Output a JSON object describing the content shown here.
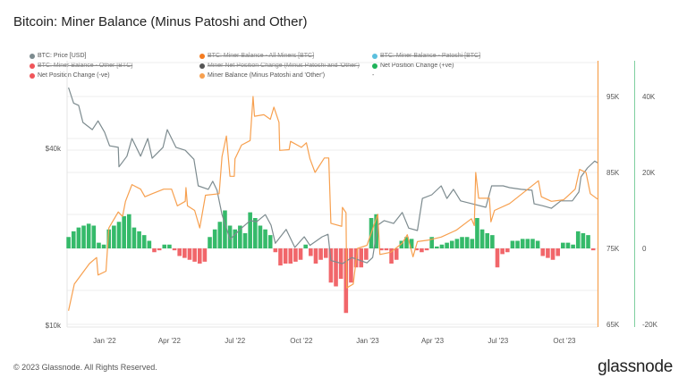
{
  "title": "Bitcoin: Miner Balance (Minus Patoshi and Other)",
  "legend": [
    {
      "label": "BTC: Price [USD]",
      "color": "#7d8b8f",
      "hidden": false
    },
    {
      "label": "BTC: Miner Balance - All Miners [BTC]",
      "color": "#f57c20",
      "hidden": true
    },
    {
      "label": "BTC: Miner Balance - Patoshi [BTC]",
      "color": "#5bc0de",
      "hidden": true
    },
    {
      "label": "BTC: Miner Balance - Other [BTC]",
      "color": "#f0555a",
      "hidden": true
    },
    {
      "label": "Miner Net Position Change (Minus Patoshi and 'Other')",
      "color": "#555555",
      "hidden": true
    },
    {
      "label": "Net Position Change (+ve)",
      "color": "#1fb35a",
      "hidden": false
    },
    {
      "label": "Net Position Change (-ve)",
      "color": "#f0555a",
      "hidden": false
    },
    {
      "label": "Miner Balance (Minus Patoshi and 'Other')",
      "color": "#f7a04f",
      "hidden": false
    },
    {
      "label": "-",
      "color": "",
      "hidden": false
    }
  ],
  "footer": "© 2023 Glassnode. All Rights Reserved.",
  "logo": "glassnode",
  "chart_data": {
    "type": "line",
    "title": "Bitcoin: Miner Balance (Minus Patoshi and Other)",
    "x_range": [
      "2021-11-10",
      "2023-11-16"
    ],
    "x_ticks": [
      {
        "date": "2022-01-01",
        "label": "Jan '22"
      },
      {
        "date": "2022-04-01",
        "label": "Apr '22"
      },
      {
        "date": "2022-07-01",
        "label": "Jul '22"
      },
      {
        "date": "2022-10-01",
        "label": "Oct '22"
      },
      {
        "date": "2023-01-01",
        "label": "Jan '23"
      },
      {
        "date": "2023-04-01",
        "label": "Apr '23"
      },
      {
        "date": "2023-07-01",
        "label": "Jul '23"
      },
      {
        "date": "2023-10-01",
        "label": "Oct '23"
      }
    ],
    "axes": {
      "price": {
        "scale": "log",
        "ticks": [
          {
            "value": 40000,
            "label": "$40k"
          },
          {
            "value": 10000,
            "label": "$10k"
          }
        ]
      },
      "balance": {
        "scale": "linear",
        "range": [
          65000,
          95000
        ],
        "ticks": [
          {
            "value": 95000,
            "label": "95K"
          },
          {
            "value": 85000,
            "label": "85K"
          },
          {
            "value": 75000,
            "label": "75K"
          },
          {
            "value": 65000,
            "label": "65K"
          }
        ],
        "color": "#f7a04f"
      },
      "net_change": {
        "scale": "linear",
        "range": [
          -20000,
          40000
        ],
        "ticks": [
          {
            "value": 40000,
            "label": "40K"
          },
          {
            "value": 20000,
            "label": "20K"
          },
          {
            "value": 0,
            "label": "0"
          },
          {
            "value": -20000,
            "label": "-20K"
          }
        ],
        "color": "#7fcf9f"
      }
    },
    "grid": true,
    "legend_position": "top",
    "series": [
      {
        "name": "BTC: Price [USD]",
        "axis": "price",
        "type": "line",
        "color": "#7d8b8f",
        "points": [
          [
            "2021-11-12",
            64400
          ],
          [
            "2021-11-19",
            57000
          ],
          [
            "2021-11-26",
            56000
          ],
          [
            "2021-12-02",
            49000
          ],
          [
            "2021-12-15",
            46300
          ],
          [
            "2021-12-23",
            49600
          ],
          [
            "2022-01-01",
            45400
          ],
          [
            "2022-01-08",
            40800
          ],
          [
            "2022-01-20",
            40300
          ],
          [
            "2022-01-21",
            34600
          ],
          [
            "2022-02-01",
            37600
          ],
          [
            "2022-02-08",
            43200
          ],
          [
            "2022-02-20",
            37600
          ],
          [
            "2022-03-02",
            43200
          ],
          [
            "2022-03-08",
            37000
          ],
          [
            "2022-03-23",
            40300
          ],
          [
            "2022-03-29",
            46300
          ],
          [
            "2022-04-10",
            40300
          ],
          [
            "2022-04-23",
            39400
          ],
          [
            "2022-05-05",
            36700
          ],
          [
            "2022-05-11",
            29800
          ],
          [
            "2022-05-25",
            29000
          ],
          [
            "2022-05-31",
            30900
          ],
          [
            "2022-06-06",
            28800
          ],
          [
            "2022-06-13",
            23800
          ],
          [
            "2022-06-24",
            19600
          ],
          [
            "2022-07-10",
            21400
          ],
          [
            "2022-07-22",
            22700
          ],
          [
            "2022-07-31",
            22500
          ],
          [
            "2022-08-12",
            23800
          ],
          [
            "2022-08-20",
            21900
          ],
          [
            "2022-08-26",
            19000
          ],
          [
            "2022-09-10",
            21200
          ],
          [
            "2022-09-22",
            18400
          ],
          [
            "2022-10-05",
            20000
          ],
          [
            "2022-10-13",
            18700
          ],
          [
            "2022-10-30",
            20000
          ],
          [
            "2022-11-07",
            20400
          ],
          [
            "2022-11-11",
            16600
          ],
          [
            "2022-11-27",
            16200
          ],
          [
            "2022-12-10",
            17000
          ],
          [
            "2022-12-31",
            16300
          ],
          [
            "2023-01-08",
            17000
          ],
          [
            "2023-01-15",
            21900
          ],
          [
            "2023-01-24",
            22700
          ],
          [
            "2023-02-06",
            22200
          ],
          [
            "2023-02-18",
            24200
          ],
          [
            "2023-02-27",
            21400
          ],
          [
            "2023-03-11",
            21000
          ],
          [
            "2023-03-18",
            27000
          ],
          [
            "2023-03-31",
            27800
          ],
          [
            "2023-04-13",
            29800
          ],
          [
            "2023-04-21",
            27000
          ],
          [
            "2023-04-30",
            29000
          ],
          [
            "2023-05-10",
            26500
          ],
          [
            "2023-05-26",
            25900
          ],
          [
            "2023-06-14",
            25200
          ],
          [
            "2023-06-22",
            29800
          ],
          [
            "2023-07-08",
            29800
          ],
          [
            "2023-07-17",
            29400
          ],
          [
            "2023-08-02",
            29000
          ],
          [
            "2023-08-17",
            28800
          ],
          [
            "2023-08-20",
            25900
          ],
          [
            "2023-09-01",
            25500
          ],
          [
            "2023-09-13",
            25000
          ],
          [
            "2023-09-26",
            26500
          ],
          [
            "2023-10-12",
            26500
          ],
          [
            "2023-10-21",
            28400
          ],
          [
            "2023-10-24",
            32000
          ],
          [
            "2023-11-02",
            34300
          ],
          [
            "2023-11-12",
            36200
          ],
          [
            "2023-11-16",
            35700
          ]
        ]
      },
      {
        "name": "Miner Balance (Minus Patoshi and 'Other')",
        "axis": "balance",
        "type": "line",
        "color": "#f7a04f",
        "points": [
          [
            "2021-11-12",
            66800
          ],
          [
            "2021-11-20",
            70300
          ],
          [
            "2021-12-11",
            73000
          ],
          [
            "2021-12-21",
            73800
          ],
          [
            "2021-12-23",
            71500
          ],
          [
            "2022-01-03",
            72000
          ],
          [
            "2022-01-07",
            77700
          ],
          [
            "2022-01-20",
            79800
          ],
          [
            "2022-01-26",
            79200
          ],
          [
            "2022-01-30",
            81200
          ],
          [
            "2022-02-08",
            83400
          ],
          [
            "2022-02-20",
            82800
          ],
          [
            "2022-02-26",
            81800
          ],
          [
            "2022-03-08",
            82200
          ],
          [
            "2022-03-24",
            82800
          ],
          [
            "2022-04-04",
            82800
          ],
          [
            "2022-04-12",
            80600
          ],
          [
            "2022-04-23",
            81200
          ],
          [
            "2022-04-24",
            83000
          ],
          [
            "2022-04-26",
            80600
          ],
          [
            "2022-05-06",
            80000
          ],
          [
            "2022-05-13",
            77700
          ],
          [
            "2022-05-21",
            82000
          ],
          [
            "2022-06-09",
            82200
          ],
          [
            "2022-06-13",
            87100
          ],
          [
            "2022-06-19",
            89800
          ],
          [
            "2022-06-24",
            84500
          ],
          [
            "2022-06-30",
            84500
          ],
          [
            "2022-07-01",
            86800
          ],
          [
            "2022-07-10",
            88600
          ],
          [
            "2022-07-22",
            89200
          ],
          [
            "2022-07-26",
            95000
          ],
          [
            "2022-07-28",
            92400
          ],
          [
            "2022-08-10",
            92600
          ],
          [
            "2022-08-19",
            92000
          ],
          [
            "2022-08-24",
            93600
          ],
          [
            "2022-08-31",
            91600
          ],
          [
            "2022-09-01",
            87900
          ],
          [
            "2022-09-14",
            88000
          ],
          [
            "2022-09-16",
            89100
          ],
          [
            "2022-10-01",
            88300
          ],
          [
            "2022-10-08",
            88900
          ],
          [
            "2022-10-13",
            86800
          ],
          [
            "2022-10-20",
            85000
          ],
          [
            "2022-11-02",
            86900
          ],
          [
            "2022-11-08",
            86900
          ],
          [
            "2022-11-11",
            78300
          ],
          [
            "2022-11-26",
            77900
          ],
          [
            "2022-11-27",
            80400
          ],
          [
            "2022-12-02",
            79700
          ],
          [
            "2022-12-03",
            69800
          ],
          [
            "2022-12-12",
            70300
          ],
          [
            "2022-12-18",
            75000
          ],
          [
            "2022-12-31",
            75400
          ],
          [
            "2023-01-15",
            79500
          ],
          [
            "2023-01-18",
            74200
          ],
          [
            "2023-02-02",
            74500
          ],
          [
            "2023-02-18",
            75700
          ],
          [
            "2023-02-25",
            76800
          ],
          [
            "2023-03-05",
            73900
          ],
          [
            "2023-03-11",
            75900
          ],
          [
            "2023-03-27",
            76100
          ],
          [
            "2023-04-13",
            76500
          ],
          [
            "2023-05-04",
            77400
          ],
          [
            "2023-05-25",
            78900
          ],
          [
            "2023-05-29",
            78000
          ],
          [
            "2023-05-31",
            85000
          ],
          [
            "2023-06-04",
            81600
          ],
          [
            "2023-06-19",
            81600
          ],
          [
            "2023-06-21",
            78500
          ],
          [
            "2023-06-26",
            80000
          ],
          [
            "2023-07-17",
            80900
          ],
          [
            "2023-08-26",
            83900
          ],
          [
            "2023-08-30",
            81800
          ],
          [
            "2023-09-13",
            81200
          ],
          [
            "2023-09-30",
            81400
          ],
          [
            "2023-10-16",
            82800
          ],
          [
            "2023-10-22",
            85400
          ],
          [
            "2023-10-31",
            85000
          ],
          [
            "2023-11-06",
            82200
          ],
          [
            "2023-11-16",
            81500
          ]
        ]
      },
      {
        "name": "Net Position Change",
        "axis": "net_change",
        "type": "bar",
        "color_pos": "#1fb35a",
        "color_neg": "#f0555a",
        "start": "2021-11-12",
        "interval_days": 7,
        "values": [
          3000,
          4500,
          5500,
          6000,
          6500,
          6000,
          1500,
          1000,
          5000,
          6000,
          7000,
          8500,
          9000,
          5500,
          4500,
          3500,
          2000,
          -1000,
          -500,
          1000,
          1000,
          -500,
          -2000,
          -2500,
          -3000,
          -3500,
          -4000,
          -3500,
          3000,
          5000,
          7000,
          10000,
          6000,
          5000,
          6000,
          4000,
          9500,
          8000,
          6000,
          5000,
          3500,
          -1000,
          -4500,
          -4000,
          -4000,
          -3500,
          -3000,
          1000,
          -2000,
          -4000,
          -3000,
          -2500,
          -9000,
          -10000,
          -8000,
          -17000,
          -9000,
          -5000,
          -5000,
          -3000,
          8000,
          9000,
          -500,
          -500,
          -4000,
          -3000,
          2000,
          3000,
          2500,
          -500,
          -1000,
          -500,
          3000,
          500,
          1000,
          1500,
          2000,
          2500,
          3000,
          3000,
          2500,
          8000,
          5000,
          4000,
          3500,
          -5000,
          -1500,
          -1000,
          2000,
          2000,
          2500,
          2500,
          2500,
          2000,
          -2000,
          -2500,
          -3000,
          -2000,
          1500,
          1500,
          1000,
          4500,
          4000,
          3500,
          -500
        ]
      }
    ]
  }
}
